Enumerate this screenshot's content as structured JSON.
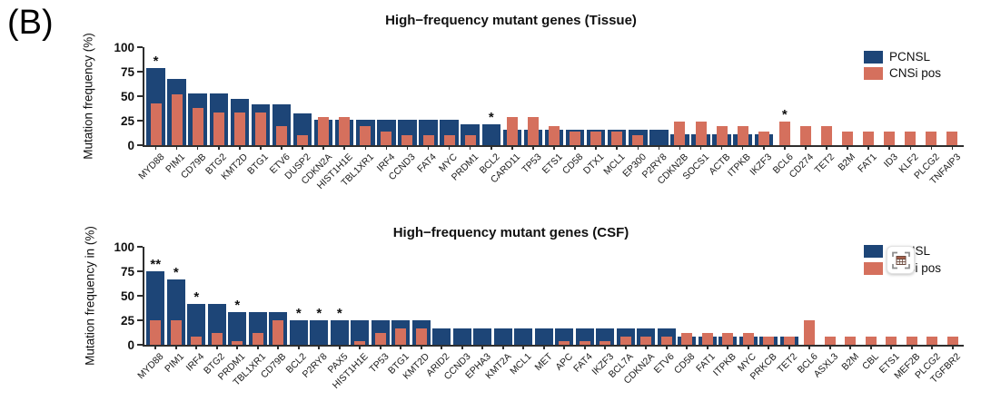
{
  "panel_label": "(B)",
  "colors": {
    "pcnsl": "#1d4577",
    "cnsi_pos": "#d5705d",
    "axis": "#2e2e2e",
    "text": "#1a1a1a"
  },
  "legend": {
    "items": [
      {
        "label": "PCNSL",
        "color_key": "pcnsl"
      },
      {
        "label": "CNSi pos",
        "color_key": "cnsi_pos"
      }
    ],
    "position": "top-right"
  },
  "overlay_button": {
    "icon": "table-capture-icon"
  },
  "chart_data": [
    {
      "type": "bar",
      "title": "High−frequency mutant genes (Tissue)",
      "ylabel": "Mutation frequency (%)",
      "ylim": [
        0,
        100
      ],
      "yticks": [
        0,
        25,
        50,
        75,
        100
      ],
      "grid": false,
      "legend_entries": [
        "PCNSL",
        "CNSi pos"
      ],
      "categories": [
        "MYD88",
        "PIM1",
        "CD79B",
        "BTG2",
        "KMT2D",
        "BTG1",
        "ETV6",
        "DUSP2",
        "CDKN2A",
        "HIST1H1E",
        "TBL1XR1",
        "IRF4",
        "CCND3",
        "FAT4",
        "MYC",
        "PRDM1",
        "BCL2",
        "CARD11",
        "TP53",
        "ETS1",
        "CD58",
        "DTX1",
        "MCL1",
        "EP300",
        "P2RY8",
        "CDKN2B",
        "SOCS1",
        "ACTB",
        "ITPKB",
        "IKZF3",
        "BCL6",
        "CD274",
        "TET2",
        "B2M",
        "FAT1",
        "ID3",
        "KLF2",
        "PLCG2",
        "TNFAIP3"
      ],
      "series": [
        {
          "name": "PCNSL",
          "color_key": "pcnsl",
          "values": [
            79,
            68,
            53,
            53,
            47,
            42,
            42,
            32,
            26,
            26,
            26,
            26,
            26,
            26,
            26,
            21,
            21,
            16,
            16,
            16,
            16,
            16,
            16,
            16,
            16,
            11,
            11,
            11,
            11,
            11,
            0,
            0,
            0,
            0,
            0,
            0,
            0,
            0,
            0
          ]
        },
        {
          "name": "CNSi pos",
          "color_key": "cnsi_pos",
          "values": [
            43,
            52,
            38,
            33,
            33,
            33,
            19,
            10,
            29,
            29,
            19,
            14,
            10,
            10,
            10,
            10,
            0,
            29,
            29,
            19,
            14,
            14,
            14,
            10,
            0,
            24,
            24,
            19,
            19,
            14,
            24,
            19,
            19,
            14,
            14,
            14,
            14,
            14,
            14
          ]
        }
      ],
      "significance": [
        "*",
        "",
        "",
        "",
        "",
        "",
        "",
        "",
        "",
        "",
        "",
        "",
        "",
        "",
        "",
        "",
        "*",
        "",
        "",
        "",
        "",
        "",
        "",
        "",
        "",
        "",
        "",
        "",
        "",
        "",
        "*",
        "",
        "",
        "",
        "",
        "",
        "",
        "",
        ""
      ]
    },
    {
      "type": "bar",
      "title": "High−frequency mutant genes (CSF)",
      "ylabel": "Mutation frequency in (%)",
      "ylim": [
        0,
        100
      ],
      "yticks": [
        0,
        25,
        50,
        75,
        100
      ],
      "grid": false,
      "legend_entries": [
        "PCNSL",
        "CNSi pos"
      ],
      "categories": [
        "MYD88",
        "PIM1",
        "IRF4",
        "BTG2",
        "PRDM1",
        "TBL1XR1",
        "CD79B",
        "BCL2",
        "P2RY8",
        "PAX5",
        "HIST1H1E",
        "TP53",
        "BTG1",
        "KMT2D",
        "ARID2",
        "CCND3",
        "EPHA3",
        "KMT2A",
        "MCL1",
        "MET",
        "APC",
        "FAT4",
        "IKZF3",
        "BCL7A",
        "CDKN2A",
        "ETV6",
        "CD58",
        "FAT1",
        "ITPKB",
        "MYC",
        "PRKCB",
        "TET2",
        "BCL6",
        "ASXL3",
        "B2M",
        "CBL",
        "ETS1",
        "MEF2B",
        "PLCG2",
        "TGFBR2"
      ],
      "series": [
        {
          "name": "PCNSL",
          "color_key": "pcnsl",
          "values": [
            75,
            67,
            42,
            42,
            33,
            33,
            33,
            25,
            25,
            25,
            25,
            25,
            25,
            25,
            17,
            17,
            17,
            17,
            17,
            17,
            17,
            17,
            17,
            17,
            17,
            17,
            8,
            8,
            8,
            8,
            8,
            8,
            0,
            0,
            0,
            0,
            0,
            0,
            0,
            0
          ]
        },
        {
          "name": "CNSi pos",
          "color_key": "cnsi_pos",
          "values": [
            25,
            25,
            8,
            12,
            4,
            12,
            25,
            0,
            0,
            0,
            4,
            12,
            17,
            17,
            0,
            0,
            0,
            0,
            0,
            0,
            4,
            4,
            4,
            8,
            8,
            8,
            12,
            12,
            12,
            12,
            8,
            8,
            25,
            8,
            8,
            8,
            8,
            8,
            8,
            8
          ]
        }
      ],
      "significance": [
        "**",
        "*",
        "*",
        "",
        "*",
        "",
        "",
        "*",
        "*",
        "*",
        "",
        "",
        "",
        "",
        "",
        "",
        "",
        "",
        "",
        "",
        "",
        "",
        "",
        "",
        "",
        "",
        "",
        "",
        "",
        "",
        "",
        "",
        "",
        "",
        "",
        "",
        "",
        "",
        "",
        ""
      ]
    }
  ]
}
